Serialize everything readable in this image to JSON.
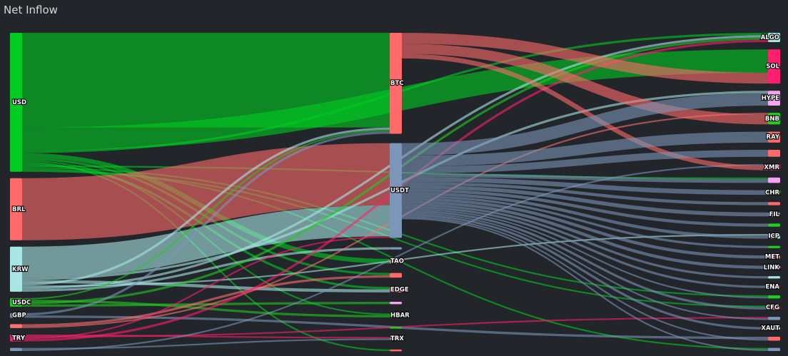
{
  "title": "Net Inflow",
  "chart_data": {
    "type": "sankey",
    "nodes": [
      {
        "id": "USD",
        "col": 0,
        "color": "#00cc22",
        "label": "USD"
      },
      {
        "id": "BRL",
        "col": 0,
        "color": "#ff6b6b",
        "label": "BRL"
      },
      {
        "id": "KRW",
        "col": 0,
        "color": "#a8e6e6",
        "label": "KRW"
      },
      {
        "id": "USDC",
        "col": 0,
        "color": "#22cc22",
        "label": "USDC"
      },
      {
        "id": "GBP",
        "col": 0,
        "color": "#7b96b8",
        "label": "GBP"
      },
      {
        "id": "n_salmon0",
        "col": 0,
        "color": "#ff7070",
        "label": ""
      },
      {
        "id": "TRY",
        "col": 0,
        "color": "#ff1f6e",
        "label": "TRY"
      },
      {
        "id": "n_steel0",
        "col": 0,
        "color": "#7b96b8",
        "label": ""
      },
      {
        "id": "BTC",
        "col": 1,
        "color": "#ff6b6b",
        "label": "BTC"
      },
      {
        "id": "USDT",
        "col": 1,
        "color": "#7b96b8",
        "label": "USDT"
      },
      {
        "id": "n_steel1",
        "col": 1,
        "color": "#7b96b8",
        "label": ""
      },
      {
        "id": "TAO",
        "col": 1,
        "color": "#ff6b6b",
        "label": "TAO"
      },
      {
        "id": "n_salmon1",
        "col": 1,
        "color": "#ff6b6b",
        "label": ""
      },
      {
        "id": "EDGE",
        "col": 1,
        "color": "#ff6b6b",
        "label": "EDGE"
      },
      {
        "id": "n_pink1",
        "col": 1,
        "color": "#f4a6f0",
        "label": ""
      },
      {
        "id": "HBAR",
        "col": 1,
        "color": "#22cc22",
        "label": "HBAR"
      },
      {
        "id": "n_green1",
        "col": 1,
        "color": "#22cc22",
        "label": ""
      },
      {
        "id": "TRX",
        "col": 1,
        "color": "#7b96b8",
        "label": "TRX"
      },
      {
        "id": "n_red1",
        "col": 1,
        "color": "#ff6b6b",
        "label": ""
      },
      {
        "id": "ALGO",
        "col": 2,
        "color": "#a8e6e6",
        "label": "ALGO"
      },
      {
        "id": "SOL",
        "col": 2,
        "color": "#ff1f6e",
        "label": "SOL"
      },
      {
        "id": "HYPE",
        "col": 2,
        "color": "#f4a6f0",
        "label": "HYPE"
      },
      {
        "id": "BNB",
        "col": 2,
        "color": "#22cc22",
        "label": "BNB"
      },
      {
        "id": "RAY",
        "col": 2,
        "color": "#ff6b6b",
        "label": "RAY"
      },
      {
        "id": "n_r1",
        "col": 2,
        "color": "#ff6b6b",
        "label": ""
      },
      {
        "id": "XMR",
        "col": 2,
        "color": "#ff1f6e",
        "label": "XMR"
      },
      {
        "id": "n_r2",
        "col": 2,
        "color": "#f4a6f0",
        "label": ""
      },
      {
        "id": "CHR",
        "col": 2,
        "color": "#22cc22",
        "label": "CHR"
      },
      {
        "id": "n_r3",
        "col": 2,
        "color": "#ff6b6b",
        "label": ""
      },
      {
        "id": "FIL",
        "col": 2,
        "color": "#7b96b8",
        "label": "FIL"
      },
      {
        "id": "n_r4",
        "col": 2,
        "color": "#22cc22",
        "label": ""
      },
      {
        "id": "ICP",
        "col": 2,
        "color": "#a8e6e6",
        "label": "ICP"
      },
      {
        "id": "n_r5",
        "col": 2,
        "color": "#22cc22",
        "label": ""
      },
      {
        "id": "MET",
        "col": 2,
        "color": "#ff6b6b",
        "label": "MET"
      },
      {
        "id": "LINK",
        "col": 2,
        "color": "#f4a6f0",
        "label": "LINK"
      },
      {
        "id": "n_r6",
        "col": 2,
        "color": "#a8e6e6",
        "label": ""
      },
      {
        "id": "ENA",
        "col": 2,
        "color": "#ff1f6e",
        "label": "ENA"
      },
      {
        "id": "n_r7",
        "col": 2,
        "color": "#22cc22",
        "label": ""
      },
      {
        "id": "CFG",
        "col": 2,
        "color": "#ff6b6b",
        "label": "CFG"
      },
      {
        "id": "n_r8",
        "col": 2,
        "color": "#7b96b8",
        "label": ""
      },
      {
        "id": "XAUT",
        "col": 2,
        "color": "#a8e6e6",
        "label": "XAUT"
      },
      {
        "id": "n_r9",
        "col": 2,
        "color": "#ff6b6b",
        "label": ""
      },
      {
        "id": "n_r10",
        "col": 2,
        "color": "#7b96b8",
        "label": ""
      }
    ],
    "links": [
      {
        "source": "USD",
        "target": "BTC",
        "value": 122
      },
      {
        "source": "USD",
        "target": "SOL",
        "value": 30
      },
      {
        "source": "USD",
        "target": "ALGO",
        "value": 3
      },
      {
        "source": "USD",
        "target": "TAO",
        "value": 6
      },
      {
        "source": "USD",
        "target": "n_salmon1",
        "value": 3
      },
      {
        "source": "USD",
        "target": "HBAR",
        "value": 2
      },
      {
        "source": "USD",
        "target": "n_red1",
        "value": 2
      },
      {
        "source": "USD",
        "target": "EDGE",
        "value": 3
      },
      {
        "source": "USD",
        "target": "n_r2",
        "value": 2
      },
      {
        "source": "USD",
        "target": "n_r7",
        "value": 2
      },
      {
        "source": "USD",
        "target": "n_r10",
        "value": 2
      },
      {
        "source": "USD",
        "target": "CFG",
        "value": 2
      },
      {
        "source": "BRL",
        "target": "USDT",
        "value": 80
      },
      {
        "source": "KRW",
        "target": "USDT",
        "value": 40
      },
      {
        "source": "KRW",
        "target": "HYPE",
        "value": 3
      },
      {
        "source": "KRW",
        "target": "EDGE",
        "value": 4
      },
      {
        "source": "KRW",
        "target": "BTC",
        "value": 3
      },
      {
        "source": "KRW",
        "target": "ICP",
        "value": 2
      },
      {
        "source": "KRW",
        "target": "ALGO",
        "value": 3
      },
      {
        "source": "KRW",
        "target": "n_steel1",
        "value": 3
      },
      {
        "source": "USDC",
        "target": "BTC",
        "value": 2
      },
      {
        "source": "USDC",
        "target": "HBAR",
        "value": 3
      },
      {
        "source": "USDC",
        "target": "ALGO",
        "value": 3
      },
      {
        "source": "USDC",
        "target": "n_pink1",
        "value": 3
      },
      {
        "source": "GBP",
        "target": "BTC",
        "value": 3
      },
      {
        "source": "GBP",
        "target": "n_r9",
        "value": 3
      },
      {
        "source": "n_salmon0",
        "target": "n_salmon1",
        "value": 3
      },
      {
        "source": "n_salmon0",
        "target": "BNB",
        "value": 2
      },
      {
        "source": "TRY",
        "target": "TRX",
        "value": 2
      },
      {
        "source": "TRY",
        "target": "n_r8",
        "value": 2
      },
      {
        "source": "TRY",
        "target": "USDT",
        "value": 2
      },
      {
        "source": "TRY",
        "target": "ALGO",
        "value": 3
      },
      {
        "source": "n_steel0",
        "target": "TRX",
        "value": 2
      },
      {
        "source": "n_steel0",
        "target": "XMR",
        "value": 2
      },
      {
        "source": "BTC",
        "target": "SOL",
        "value": 14
      },
      {
        "source": "BTC",
        "target": "BNB",
        "value": 13
      },
      {
        "source": "BTC",
        "target": "XMR",
        "value": 6
      },
      {
        "source": "USDT",
        "target": "HYPE",
        "value": 16
      },
      {
        "source": "USDT",
        "target": "RAY",
        "value": 14
      },
      {
        "source": "USDT",
        "target": "n_r1",
        "value": 9
      },
      {
        "source": "USDT",
        "target": "n_r2",
        "value": 5
      },
      {
        "source": "USDT",
        "target": "CHR",
        "value": 6
      },
      {
        "source": "USDT",
        "target": "n_r3",
        "value": 4
      },
      {
        "source": "USDT",
        "target": "FIL",
        "value": 5
      },
      {
        "source": "USDT",
        "target": "n_r4",
        "value": 4
      },
      {
        "source": "USDT",
        "target": "ICP",
        "value": 4
      },
      {
        "source": "USDT",
        "target": "n_r5",
        "value": 3
      },
      {
        "source": "USDT",
        "target": "MET",
        "value": 4
      },
      {
        "source": "USDT",
        "target": "LINK",
        "value": 4
      },
      {
        "source": "USDT",
        "target": "n_r6",
        "value": 3
      },
      {
        "source": "USDT",
        "target": "ENA",
        "value": 3
      },
      {
        "source": "USDT",
        "target": "n_r7",
        "value": 2
      },
      {
        "source": "USDT",
        "target": "CFG",
        "value": 3
      },
      {
        "source": "USDT",
        "target": "n_r8",
        "value": 2
      },
      {
        "source": "USDT",
        "target": "XAUT",
        "value": 3
      },
      {
        "source": "USDT",
        "target": "n_r9",
        "value": 2
      },
      {
        "source": "USDT",
        "target": "n_r10",
        "value": 2
      }
    ]
  }
}
